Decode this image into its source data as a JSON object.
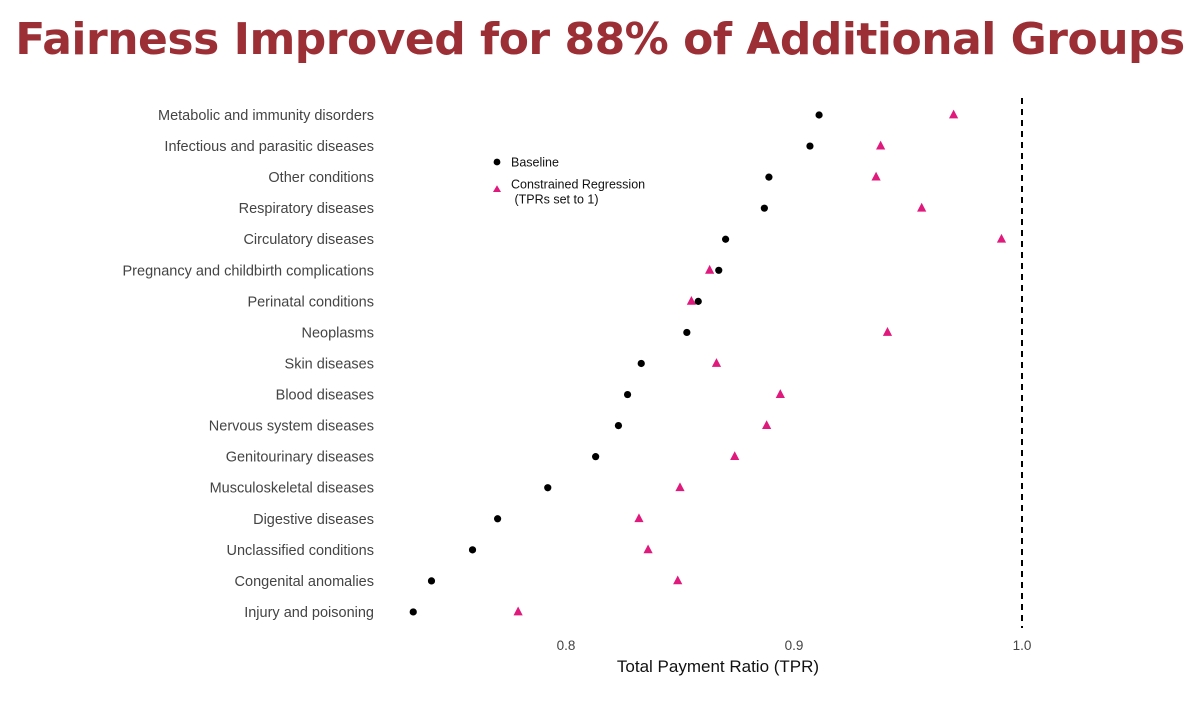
{
  "title": "Fairness Improved for 88% of Additional Groups",
  "colors": {
    "title": "#9b2f35",
    "baseline": "#000000",
    "constrained": "#e0197d",
    "reference_line": "#000000"
  },
  "chart_data": {
    "type": "scatter",
    "title": "Fairness Improved for 88% of Additional Groups",
    "xlabel": "Total Payment Ratio (TPR)",
    "ylabel": "",
    "xlim": [
      0.732,
      1.0
    ],
    "xticks": [
      0.8,
      0.9,
      1.0
    ],
    "xtick_labels": [
      "0.8",
      "0.9",
      "1.0"
    ],
    "reference_line": {
      "x": 1.0,
      "style": "dashed"
    },
    "grid": false,
    "legend_position": "top-left, inside plot",
    "categories": [
      "Metabolic and immunity disorders",
      "Infectious and parasitic diseases",
      "Other conditions",
      "Respiratory diseases",
      "Circulatory diseases",
      "Pregnancy and childbirth complications",
      "Perinatal conditions",
      "Neoplasms",
      "Skin diseases",
      "Blood diseases",
      "Nervous system diseases",
      "Genitourinary diseases",
      "Musculoskeletal diseases",
      "Digestive diseases",
      "Unclassified conditions",
      "Congenital anomalies",
      "Injury and poisoning"
    ],
    "series": [
      {
        "name": "Baseline",
        "marker": "circle",
        "values": [
          0.911,
          0.907,
          0.889,
          0.887,
          0.87,
          0.867,
          0.858,
          0.853,
          0.833,
          0.827,
          0.823,
          0.813,
          0.792,
          0.77,
          0.759,
          0.741,
          0.733
        ]
      },
      {
        "name": "Constrained Regression\n (TPRs set to 1)",
        "marker": "triangle",
        "values": [
          0.97,
          0.938,
          0.936,
          0.956,
          0.991,
          0.863,
          0.855,
          0.941,
          0.866,
          0.894,
          0.888,
          0.874,
          0.85,
          0.832,
          0.836,
          0.849,
          0.779
        ]
      }
    ],
    "legend": [
      {
        "lines": [
          "Baseline"
        ]
      },
      {
        "lines": [
          "Constrained Regression",
          " (TPRs set to 1)"
        ]
      }
    ]
  }
}
